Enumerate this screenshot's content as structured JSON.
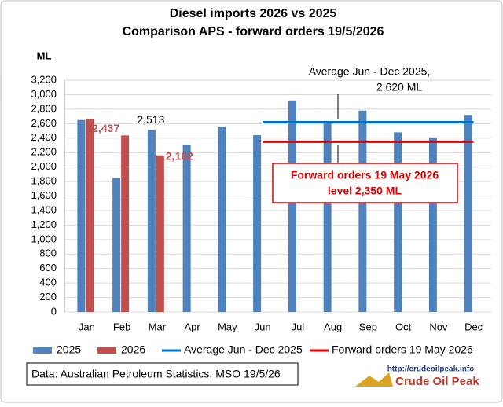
{
  "chart_data": {
    "type": "bar",
    "title": [
      "Diesel imports 2026 vs 2025",
      "Comparison APS - forward orders 19/5/2026"
    ],
    "y_label": "ML",
    "categories": [
      "Jan",
      "Feb",
      "Mar",
      "Apr",
      "May",
      "Jun",
      "Jul",
      "Aug",
      "Sep",
      "Oct",
      "Nov",
      "Dec"
    ],
    "series": [
      {
        "name": "2025",
        "color": "#4f81bd",
        "values": [
          2650,
          1850,
          2513,
          2310,
          2560,
          2440,
          2920,
          2620,
          2780,
          2480,
          2410,
          2720
        ],
        "value_labels": [
          null,
          null,
          "2,513",
          null,
          null,
          null,
          null,
          null,
          null,
          null,
          null,
          null
        ]
      },
      {
        "name": "2026",
        "color": "#c0504d",
        "values": [
          2660,
          2437,
          2162,
          null,
          null,
          null,
          null,
          null,
          null,
          null,
          null,
          null
        ],
        "value_labels": [
          null,
          "2,437",
          "2,162",
          null,
          null,
          null,
          null,
          null,
          null,
          null,
          null,
          null
        ]
      }
    ],
    "lines": [
      {
        "name": "Average Jun - Dec 2025",
        "color": "#0070c0",
        "values": [
          null,
          null,
          null,
          null,
          null,
          2620,
          2620,
          2620,
          2620,
          2620,
          2620,
          2620
        ]
      },
      {
        "name": "Forward orders 19 May 2026",
        "color": "#e00000",
        "values": [
          null,
          null,
          null,
          null,
          null,
          2350,
          2350,
          2350,
          2350,
          2350,
          2350,
          2350
        ]
      }
    ],
    "annotations": [
      {
        "lines": [
          "Average Jun - Dec 2025,",
          "2,620 ML"
        ]
      },
      {
        "lines": [
          "Forward orders 19 May 2026",
          "level  2,350 ML"
        ]
      }
    ],
    "source": "Data: Australian Petroleum Statistics, MSO 19/5/26",
    "logo": [
      "http://crudeoilpeak.info",
      "Crude Oil Peak"
    ],
    "ylim": [
      0,
      3200
    ],
    "yticks": [
      0,
      200,
      400,
      600,
      800,
      {
        "value": 1000,
        "label": "1,000"
      },
      {
        "value": 1200,
        "label": "1,200"
      },
      {
        "value": 1400,
        "label": "1,400"
      },
      {
        "value": 1600,
        "label": "1,600"
      },
      {
        "value": 1800,
        "label": "1,800"
      },
      {
        "value": 2000,
        "label": "2,000"
      },
      {
        "value": 2200,
        "label": "2,200"
      },
      {
        "value": 2400,
        "label": "2,400"
      },
      {
        "value": 2600,
        "label": "2,600"
      },
      {
        "value": 2800,
        "label": "2,800"
      },
      {
        "value": 3000,
        "label": "3,000"
      },
      {
        "value": 3200,
        "label": "3,200"
      }
    ],
    "grid": true
  }
}
